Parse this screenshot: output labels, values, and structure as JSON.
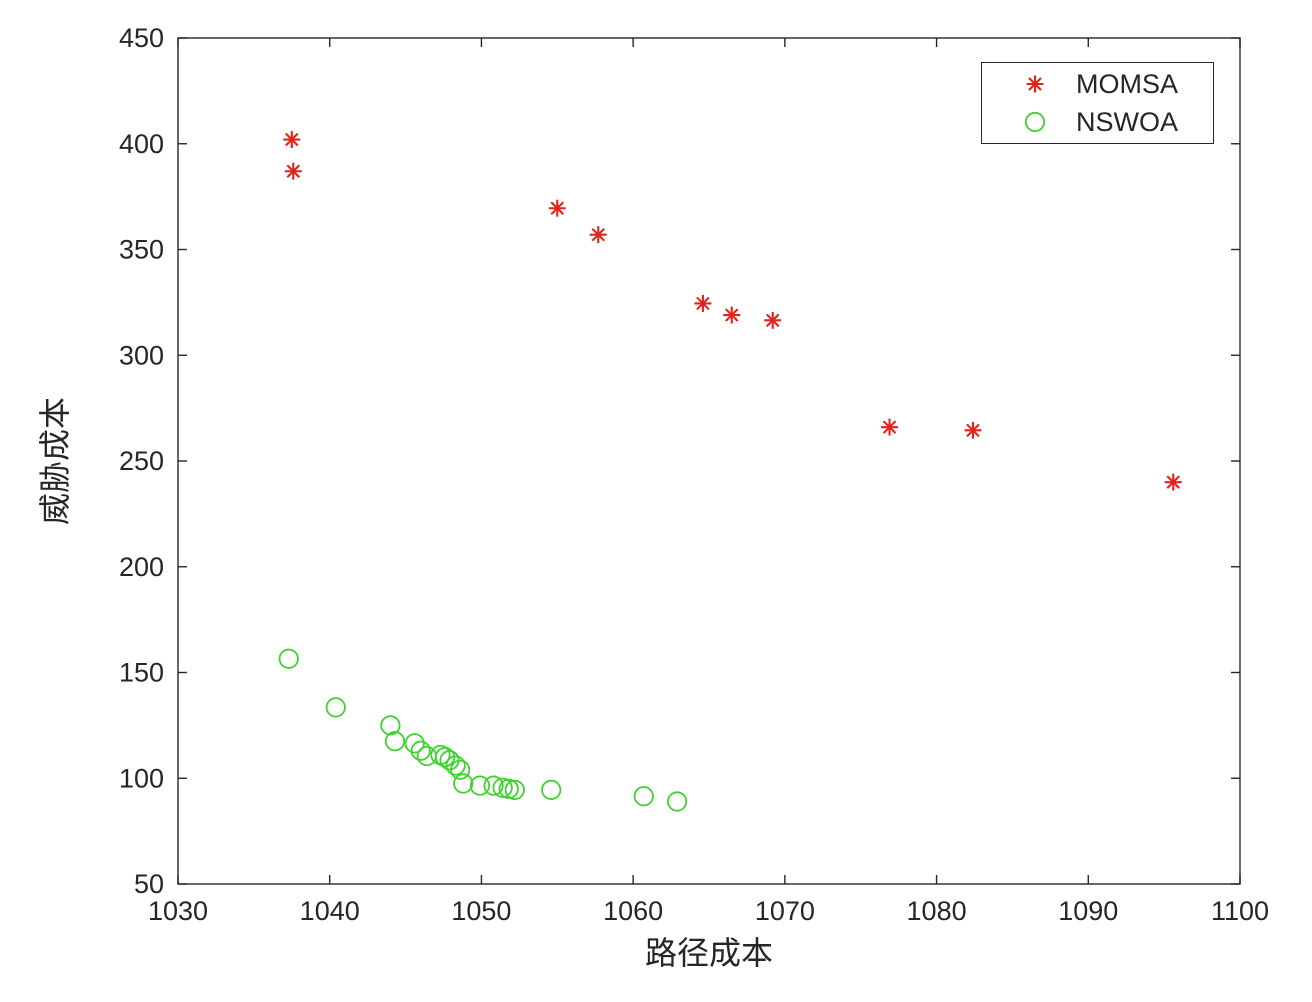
{
  "figure": {
    "background": "#ffffff"
  },
  "axes": {
    "box_color": "#262626",
    "tick_label_color": "#262626",
    "tick_label_font_size": 27,
    "axis_label_font_size": 32,
    "tick_length": 9
  },
  "chart_data": {
    "type": "scatter",
    "title": "",
    "xlabel": "路径成本",
    "ylabel": "威胁成本",
    "xlim": [
      1030,
      1100
    ],
    "ylim": [
      50,
      450
    ],
    "xticks": [
      1030,
      1040,
      1050,
      1060,
      1070,
      1080,
      1090,
      1100
    ],
    "yticks": [
      50,
      100,
      150,
      200,
      250,
      300,
      350,
      400,
      450
    ],
    "grid": false,
    "legend": {
      "position": "top-right",
      "entries": [
        "MOMSA",
        "NSWOA"
      ]
    },
    "series": [
      {
        "name": "MOMSA",
        "marker": "asterisk",
        "color": "#e2231a",
        "points": [
          [
            1037.5,
            402
          ],
          [
            1037.6,
            387
          ],
          [
            1055.0,
            369.5
          ],
          [
            1057.7,
            357
          ],
          [
            1064.6,
            324.5
          ],
          [
            1066.5,
            319
          ],
          [
            1069.2,
            316.5
          ],
          [
            1076.9,
            266
          ],
          [
            1082.4,
            264.5
          ],
          [
            1095.6,
            240
          ]
        ]
      },
      {
        "name": "NSWOA",
        "marker": "circle",
        "color": "#3fd32f",
        "points": [
          [
            1037.3,
            156.5
          ],
          [
            1040.4,
            133.5
          ],
          [
            1044.0,
            125
          ],
          [
            1044.3,
            117.5
          ],
          [
            1045.6,
            116.5
          ],
          [
            1046.0,
            113
          ],
          [
            1046.4,
            110.5
          ],
          [
            1047.3,
            111
          ],
          [
            1047.6,
            110
          ],
          [
            1047.9,
            108.5
          ],
          [
            1048.3,
            106
          ],
          [
            1048.6,
            104
          ],
          [
            1048.8,
            97.5
          ],
          [
            1049.9,
            96.5
          ],
          [
            1050.8,
            96.5
          ],
          [
            1051.4,
            95.5
          ],
          [
            1051.8,
            95
          ],
          [
            1052.2,
            94.5
          ],
          [
            1054.6,
            94.5
          ],
          [
            1060.7,
            91.5
          ],
          [
            1062.9,
            89
          ]
        ]
      }
    ]
  }
}
